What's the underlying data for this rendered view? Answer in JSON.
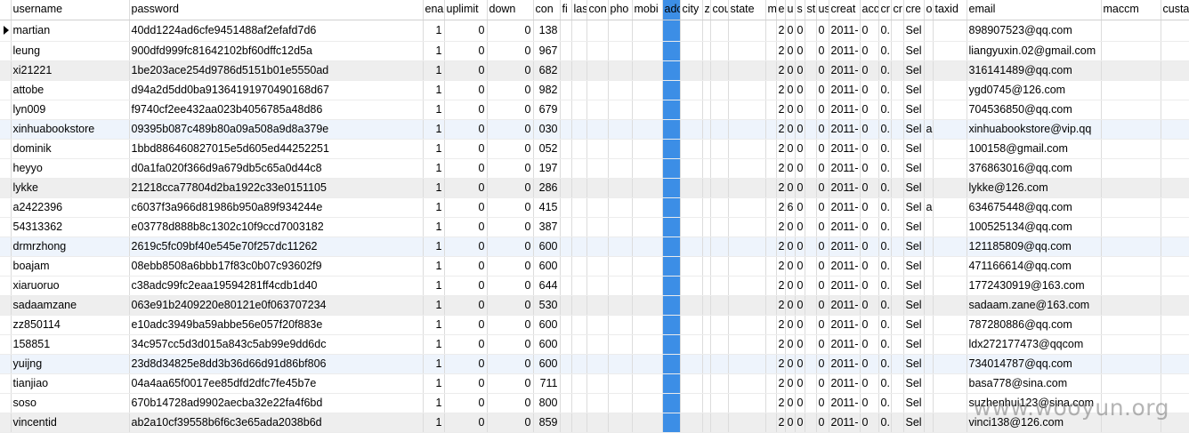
{
  "columns": [
    "username",
    "password",
    "ena",
    "uplimit",
    "down",
    "con",
    "fi",
    "las",
    "con",
    "pho",
    "mobi",
    "adc",
    "city",
    "z",
    "cou",
    "state",
    "m",
    "e",
    "u",
    "s",
    "st",
    "us",
    "creat",
    "acc",
    "cr",
    "cr",
    "cre",
    "o",
    "taxid",
    "email",
    "maccm",
    "custattr"
  ],
  "rows": [
    {
      "username": "martian",
      "password": "40dd1224ad6cfe9451488af2efafd7d6",
      "ena": "1",
      "uplimit": "0",
      "down": "0",
      "con": "138",
      "m": "",
      "e": "2",
      "u": "0",
      "s": "0",
      "us": "0",
      "creat": "2011-",
      "acc": "0",
      "cr": "0.",
      "cre": "Sel",
      "o": "",
      "email": "898907523@qq.com"
    },
    {
      "username": "leung",
      "password": "900dfd999fc81642102bf60dffc12d5a",
      "ena": "1",
      "uplimit": "0",
      "down": "0",
      "con": "967",
      "m": "",
      "e": "2",
      "u": "0",
      "s": "0",
      "us": "0",
      "creat": "2011-",
      "acc": "0",
      "cr": "0.",
      "cre": "Sel",
      "o": "",
      "email": "liangyuxin.02@gmail.com"
    },
    {
      "username": "xi21221",
      "password": "1be203ace254d9786d5151b01e5550ad",
      "ena": "1",
      "uplimit": "0",
      "down": "0",
      "con": "682",
      "m": "",
      "e": "2",
      "u": "0",
      "s": "0",
      "us": "0",
      "creat": "2011-",
      "acc": "0",
      "cr": "0.",
      "cre": "Sel",
      "o": "",
      "email": "316141489@qq.com"
    },
    {
      "username": "attobe",
      "password": "d94a2d5dd0ba91364191970490168d67",
      "ena": "1",
      "uplimit": "0",
      "down": "0",
      "con": "982",
      "m": "",
      "e": "2",
      "u": "0",
      "s": "0",
      "us": "0",
      "creat": "2011-",
      "acc": "0",
      "cr": "0.",
      "cre": "Sel",
      "o": "",
      "email": "ygd0745@126.com"
    },
    {
      "username": "lyn009",
      "password": "f9740cf2ee432aa023b4056785a48d86",
      "ena": "1",
      "uplimit": "0",
      "down": "0",
      "con": "679",
      "m": "",
      "e": "2",
      "u": "0",
      "s": "0",
      "us": "0",
      "creat": "2011-",
      "acc": "0",
      "cr": "0.",
      "cre": "Sel",
      "o": "",
      "email": "704536850@qq.com"
    },
    {
      "username": "xinhuabookstore",
      "password": "09395b087c489b80a09a508a9d8a379e",
      "ena": "1",
      "uplimit": "0",
      "down": "0",
      "con": "030",
      "m": "",
      "e": "2",
      "u": "0",
      "s": "0",
      "us": "0",
      "creat": "2011-",
      "acc": "0",
      "cr": "0.",
      "cre": "Sel",
      "o": "a",
      "email": "xinhuabookstore@vip.qq"
    },
    {
      "username": "dominik",
      "password": "1bbd886460827015e5d605ed44252251",
      "ena": "1",
      "uplimit": "0",
      "down": "0",
      "con": "052",
      "m": "",
      "e": "2",
      "u": "0",
      "s": "0",
      "us": "0",
      "creat": "2011-",
      "acc": "0",
      "cr": "0.",
      "cre": "Sel",
      "o": "",
      "email": "100158@gmail.com"
    },
    {
      "username": "heyyo",
      "password": "d0a1fa020f366d9a679db5c65a0d44c8",
      "ena": "1",
      "uplimit": "0",
      "down": "0",
      "con": "197",
      "m": "",
      "e": "2",
      "u": "0",
      "s": "0",
      "us": "0",
      "creat": "2011-",
      "acc": "0",
      "cr": "0.",
      "cre": "Sel",
      "o": "",
      "email": "376863016@qq.com"
    },
    {
      "username": "lykke",
      "password": "21218cca77804d2ba1922c33e0151105",
      "ena": "1",
      "uplimit": "0",
      "down": "0",
      "con": "286",
      "m": "",
      "e": "2",
      "u": "0",
      "s": "0",
      "us": "0",
      "creat": "2011-",
      "acc": "0",
      "cr": "0.",
      "cre": "Sel",
      "o": "",
      "email": "lykke@126.com"
    },
    {
      "username": "a2422396",
      "password": "c6037f3a966d81986b950a89f934244e",
      "ena": "1",
      "uplimit": "0",
      "down": "0",
      "con": "415",
      "m": "",
      "e": "2",
      "u": "6",
      "s": "0",
      "us": "0",
      "creat": "2011-",
      "acc": "0",
      "cr": "0.",
      "cre": "Sel",
      "o": "a",
      "email": "634675448@qq.com"
    },
    {
      "username": "54313362",
      "password": "e03778d888b8c1302c10f9ccd7003182",
      "ena": "1",
      "uplimit": "0",
      "down": "0",
      "con": "387",
      "m": "",
      "e": "2",
      "u": "0",
      "s": "0",
      "us": "0",
      "creat": "2011-",
      "acc": "0",
      "cr": "0.",
      "cre": "Sel",
      "o": "",
      "email": "100525134@qq.com"
    },
    {
      "username": "drmrzhong",
      "password": "2619c5fc09bf40e545e70f257dc11262",
      "ena": "1",
      "uplimit": "0",
      "down": "0",
      "con": "600",
      "m": "",
      "e": "2",
      "u": "0",
      "s": "0",
      "us": "0",
      "creat": "2011-",
      "acc": "0",
      "cr": "0.",
      "cre": "Sel",
      "o": "",
      "email": "121185809@qq.com"
    },
    {
      "username": "boajam",
      "password": "08ebb8508a6bbb17f83c0b07c93602f9",
      "ena": "1",
      "uplimit": "0",
      "down": "0",
      "con": "600",
      "m": "",
      "e": "2",
      "u": "0",
      "s": "0",
      "us": "0",
      "creat": "2011-",
      "acc": "0",
      "cr": "0.",
      "cre": "Sel",
      "o": "",
      "email": "471166614@qq.com"
    },
    {
      "username": "xiaruoruo",
      "password": "c38adc99fc2eaa19594281ff4cdb1d40",
      "ena": "1",
      "uplimit": "0",
      "down": "0",
      "con": "644",
      "m": "",
      "e": "2",
      "u": "0",
      "s": "0",
      "us": "0",
      "creat": "2011-",
      "acc": "0",
      "cr": "0.",
      "cre": "Sel",
      "o": "",
      "email": "1772430919@163.com"
    },
    {
      "username": "sadaamzane",
      "password": "063e91b2409220e80121e0f063707234",
      "ena": "1",
      "uplimit": "0",
      "down": "0",
      "con": "530",
      "m": "",
      "e": "2",
      "u": "0",
      "s": "0",
      "us": "0",
      "creat": "2011-",
      "acc": "0",
      "cr": "0.",
      "cre": "Sel",
      "o": "",
      "email": "sadaam.zane@163.com"
    },
    {
      "username": "zz850114",
      "password": "e10adc3949ba59abbe56e057f20f883e",
      "ena": "1",
      "uplimit": "0",
      "down": "0",
      "con": "600",
      "m": "",
      "e": "2",
      "u": "0",
      "s": "0",
      "us": "0",
      "creat": "2011-",
      "acc": "0",
      "cr": "0.",
      "cre": "Sel",
      "o": "",
      "email": "787280886@qq.com"
    },
    {
      "username": "158851",
      "password": "34c957cc5d3d015a843c5ab99e9dd6dc",
      "ena": "1",
      "uplimit": "0",
      "down": "0",
      "con": "600",
      "m": "",
      "e": "2",
      "u": "0",
      "s": "0",
      "us": "0",
      "creat": "2011-",
      "acc": "0",
      "cr": "0.",
      "cre": "Sel",
      "o": "",
      "email": "ldx272177473@qqcom"
    },
    {
      "username": "yuijng",
      "password": "23d8d34825e8dd3b36d66d91d86bf806",
      "ena": "1",
      "uplimit": "0",
      "down": "0",
      "con": "600",
      "m": "",
      "e": "2",
      "u": "0",
      "s": "0",
      "us": "0",
      "creat": "2011-",
      "acc": "0",
      "cr": "0.",
      "cre": "Sel",
      "o": "",
      "email": "734014787@qq.com"
    },
    {
      "username": "tianjiao",
      "password": "04a4aa65f0017ee85dfd2dfc7fe45b7e",
      "ena": "1",
      "uplimit": "0",
      "down": "0",
      "con": "711",
      "m": "",
      "e": "2",
      "u": "0",
      "s": "0",
      "us": "0",
      "creat": "2011-",
      "acc": "0",
      "cr": "0.",
      "cre": "Sel",
      "o": "",
      "email": "basa778@sina.com"
    },
    {
      "username": "soso",
      "password": "670b14728ad9902aecba32e22fa4f6bd",
      "ena": "1",
      "uplimit": "0",
      "down": "0",
      "con": "800",
      "m": "",
      "e": "2",
      "u": "0",
      "s": "0",
      "us": "0",
      "creat": "2011-",
      "acc": "0",
      "cr": "0.",
      "cre": "Sel",
      "o": "",
      "email": "suzhenhui123@sina.com"
    },
    {
      "username": "vincentid",
      "password": "ab2a10cf39558b6f6c3e65ada2038b6d",
      "ena": "1",
      "uplimit": "0",
      "down": "0",
      "con": "859",
      "m": "",
      "e": "2",
      "u": "0",
      "s": "0",
      "us": "0",
      "creat": "2011-",
      "acc": "0",
      "cr": "0.",
      "cre": "Sel",
      "o": "",
      "email": "vinci138@126.com"
    }
  ],
  "row_shading": [
    "none",
    "none",
    "gray",
    "none",
    "none",
    "blue",
    "none",
    "none",
    "gray",
    "none",
    "none",
    "blue",
    "none",
    "none",
    "gray",
    "none",
    "none",
    "blue",
    "none",
    "none",
    "gray"
  ],
  "watermark": "www.wooyun.org",
  "colors": {
    "selected_column": "#3c8ee6",
    "gray_row": "#eeeeee",
    "blue_row": "#eef4fc"
  }
}
